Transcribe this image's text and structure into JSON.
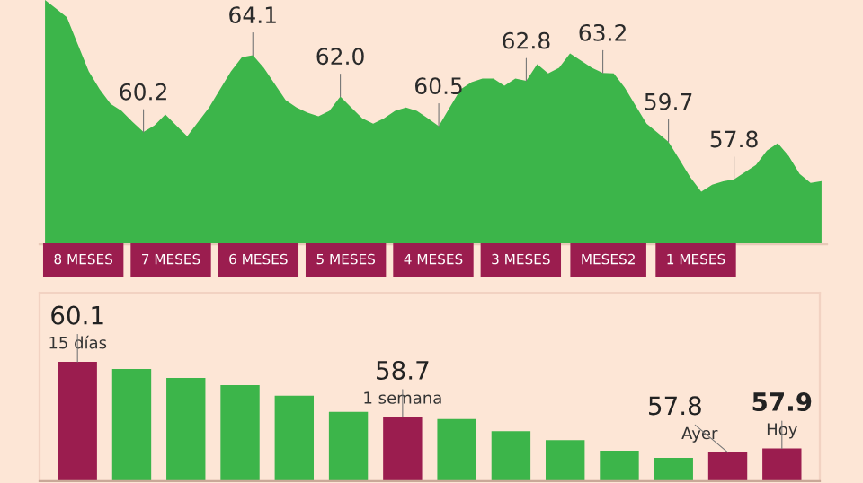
{
  "chart_data": [
    {
      "type": "area",
      "ylim": [
        54.5,
        66.9
      ],
      "annotations": [
        "8 MESES",
        "7 MESES",
        "6 MESES",
        "5 MESES",
        "4 MESES",
        "3 MESES",
        "MESES2",
        "1 MESES"
      ],
      "categories": [
        null,
        null,
        null,
        null,
        null,
        null,
        null,
        null,
        null,
        null,
        null,
        null,
        null,
        null,
        null,
        null,
        null,
        null,
        null,
        null,
        null,
        null,
        null,
        null,
        null,
        null,
        null,
        null,
        null,
        null,
        null,
        null,
        null,
        null,
        null,
        null,
        null,
        null,
        null,
        null,
        null,
        null,
        null,
        null,
        null,
        null,
        null,
        null,
        null,
        null,
        null,
        null,
        null,
        null,
        null,
        null,
        null,
        null,
        null,
        null,
        null,
        null,
        null,
        null,
        null,
        null,
        null,
        null,
        null,
        null,
        null,
        null
      ],
      "series": [
        {
          "color": "#3cb54a",
          "values": [
            66.9,
            66.47,
            66.02,
            64.65,
            63.28,
            62.37,
            61.63,
            61.27,
            60.72,
            60.2,
            60.54,
            61.09,
            60.54,
            59.99,
            60.72,
            61.45,
            62.37,
            63.28,
            64.0,
            64.1,
            63.46,
            62.64,
            61.82,
            61.45,
            61.18,
            61.0,
            61.27,
            62.0,
            61.45,
            60.9,
            60.63,
            60.9,
            61.27,
            61.45,
            61.27,
            60.9,
            60.5,
            61.45,
            62.37,
            62.73,
            62.91,
            62.91,
            62.55,
            62.91,
            62.8,
            63.64,
            63.18,
            63.46,
            64.19,
            63.82,
            63.46,
            63.2,
            63.18,
            62.46,
            61.54,
            60.63,
            60.17,
            59.7,
            58.81,
            57.9,
            57.17,
            57.53,
            57.7,
            57.8,
            58.17,
            58.53,
            59.26,
            59.63,
            58.99,
            58.08,
            57.62,
            57.71
          ],
          "value_labels": [
            null,
            null,
            null,
            null,
            null,
            null,
            null,
            null,
            null,
            "60.2",
            null,
            null,
            null,
            null,
            null,
            null,
            null,
            null,
            null,
            "64.1",
            null,
            null,
            null,
            null,
            null,
            null,
            null,
            "62.0",
            null,
            null,
            null,
            null,
            null,
            null,
            null,
            null,
            "60.5",
            null,
            null,
            null,
            null,
            null,
            null,
            null,
            "62.8",
            null,
            null,
            null,
            null,
            null,
            null,
            "63.2",
            null,
            null,
            null,
            null,
            null,
            "59.7",
            null,
            null,
            null,
            null,
            null,
            "57.8",
            null,
            null,
            null,
            null,
            null,
            null,
            null,
            null
          ]
        }
      ]
    },
    {
      "type": "bar",
      "ylim": [
        57.07,
        61.86
      ],
      "annotations": [
        "15 días",
        "1 semana",
        "Ayer",
        "Hoy"
      ],
      "categories": [
        null,
        null,
        null,
        null,
        null,
        null,
        null,
        null,
        null,
        null,
        null,
        null,
        null,
        null
      ],
      "colors": [
        "#9b1d4f",
        "#3cb54a",
        "#3cb54a",
        "#3cb54a",
        "#3cb54a",
        "#3cb54a",
        "#9b1d4f",
        "#3cb54a",
        "#3cb54a",
        "#3cb54a",
        "#3cb54a",
        "#3cb54a",
        "#9b1d4f",
        "#9b1d4f"
      ],
      "values": [
        60.1,
        59.92,
        59.69,
        59.51,
        59.24,
        58.83,
        58.7,
        58.65,
        58.34,
        58.11,
        57.84,
        57.66,
        57.8,
        57.9
      ],
      "value_labels": [
        "60.1",
        null,
        null,
        null,
        null,
        null,
        "58.7",
        null,
        null,
        null,
        null,
        null,
        "57.8",
        "57.9"
      ]
    }
  ]
}
